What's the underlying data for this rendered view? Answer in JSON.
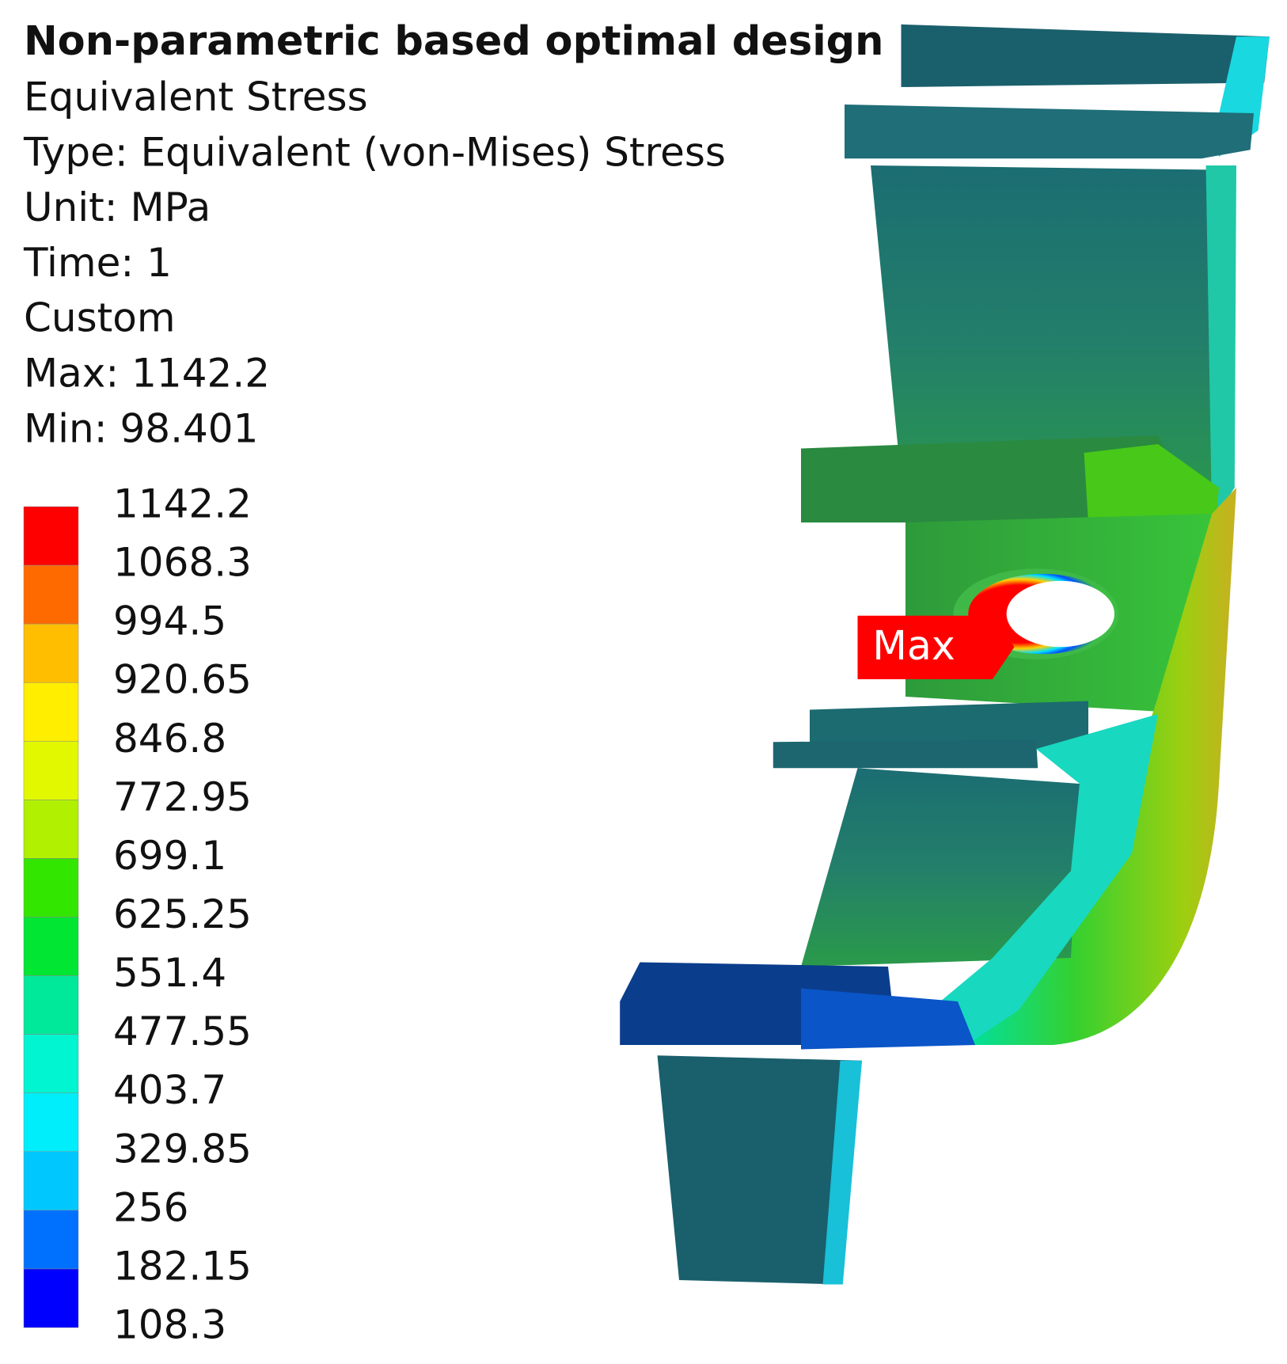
{
  "header": {
    "title": "Non-parametric based optimal design",
    "lines": [
      "Equivalent Stress",
      "Type: Equivalent (von-Mises) Stress",
      "Unit: MPa",
      "Time: 1",
      "Custom",
      "Max: 1142.2",
      "Min: 98.401"
    ]
  },
  "legend": {
    "levels": [
      "1142.2",
      "1068.3",
      "994.5",
      "920.65",
      "846.8",
      "772.95",
      "699.1",
      "625.25",
      "551.4",
      "477.55",
      "403.7",
      "329.85",
      "256",
      "182.15",
      "108.3"
    ],
    "colors": [
      "#ff0000",
      "#ff6a00",
      "#ffbf00",
      "#ffee00",
      "#e2f800",
      "#b0f000",
      "#33e600",
      "#00e632",
      "#00e89a",
      "#00f5d0",
      "#00eefc",
      "#00c8ff",
      "#0070ff",
      "#0000ff"
    ]
  },
  "probe": {
    "label": "Max"
  }
}
